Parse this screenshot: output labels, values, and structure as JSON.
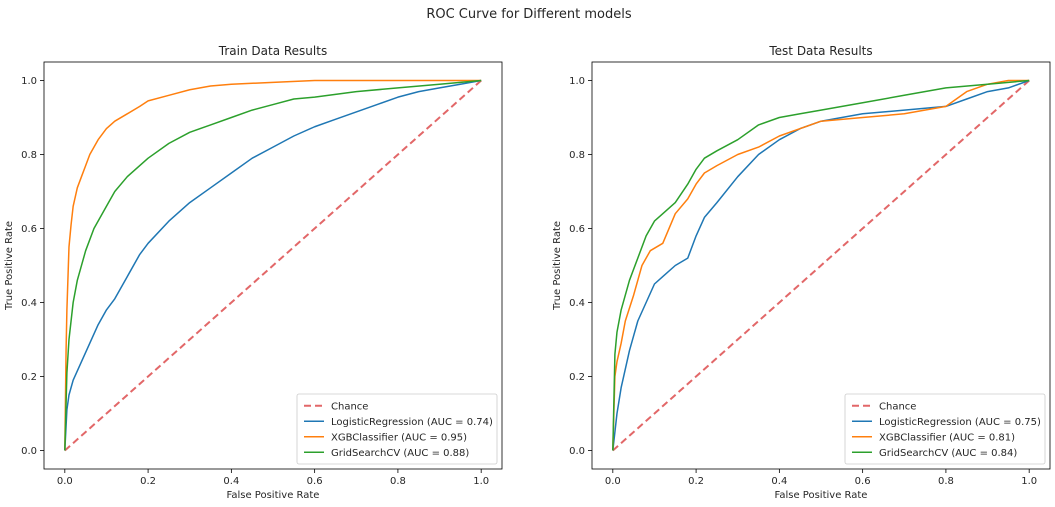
{
  "suptitle": "ROC Curve for Different models",
  "chart_data": [
    {
      "type": "line",
      "title": "Train Data Results",
      "xlabel": "False Positive Rate",
      "ylabel": "True Positive Rate",
      "xlim": [
        -0.05,
        1.05
      ],
      "ylim": [
        -0.05,
        1.05
      ],
      "xticks": [
        "0.0",
        "0.2",
        "0.4",
        "0.6",
        "0.8",
        "1.0"
      ],
      "yticks": [
        "0.0",
        "0.2",
        "0.4",
        "0.6",
        "0.8",
        "1.0"
      ],
      "grid": false,
      "legend_position": "lower-right",
      "series": [
        {
          "name": "Chance",
          "color": "#d62728",
          "dashed": true,
          "x": [
            0,
            1
          ],
          "y": [
            0,
            1
          ]
        },
        {
          "name": "LogisticRegression (AUC = 0.74)",
          "color": "#1f77b4",
          "x": [
            0,
            0.005,
            0.01,
            0.02,
            0.04,
            0.06,
            0.08,
            0.1,
            0.12,
            0.15,
            0.18,
            0.2,
            0.25,
            0.3,
            0.35,
            0.4,
            0.45,
            0.5,
            0.55,
            0.6,
            0.65,
            0.7,
            0.75,
            0.8,
            0.85,
            0.9,
            0.95,
            1.0
          ],
          "y": [
            0,
            0.11,
            0.15,
            0.19,
            0.24,
            0.29,
            0.34,
            0.38,
            0.41,
            0.47,
            0.53,
            0.56,
            0.62,
            0.67,
            0.71,
            0.75,
            0.79,
            0.82,
            0.85,
            0.875,
            0.895,
            0.915,
            0.935,
            0.955,
            0.97,
            0.98,
            0.99,
            1.0
          ]
        },
        {
          "name": "XGBClassifier (AUC = 0.95)",
          "color": "#ff7f0e",
          "x": [
            0,
            0.003,
            0.005,
            0.01,
            0.015,
            0.02,
            0.03,
            0.04,
            0.05,
            0.06,
            0.08,
            0.1,
            0.12,
            0.15,
            0.18,
            0.2,
            0.25,
            0.3,
            0.35,
            0.4,
            0.5,
            0.6,
            0.7,
            0.8,
            0.9,
            1.0
          ],
          "y": [
            0,
            0.27,
            0.38,
            0.55,
            0.61,
            0.66,
            0.71,
            0.74,
            0.77,
            0.8,
            0.84,
            0.87,
            0.89,
            0.91,
            0.93,
            0.945,
            0.96,
            0.975,
            0.985,
            0.99,
            0.995,
            1.0,
            1.0,
            1.0,
            1.0,
            1.0
          ]
        },
        {
          "name": "GridSearchCV (AUC = 0.88)",
          "color": "#2ca02c",
          "x": [
            0,
            0.005,
            0.01,
            0.02,
            0.03,
            0.05,
            0.07,
            0.1,
            0.12,
            0.15,
            0.2,
            0.25,
            0.3,
            0.35,
            0.4,
            0.45,
            0.5,
            0.55,
            0.6,
            0.7,
            0.8,
            0.9,
            1.0
          ],
          "y": [
            0,
            0.21,
            0.3,
            0.4,
            0.46,
            0.54,
            0.6,
            0.66,
            0.7,
            0.74,
            0.79,
            0.83,
            0.86,
            0.88,
            0.9,
            0.92,
            0.935,
            0.95,
            0.955,
            0.97,
            0.98,
            0.99,
            1.0
          ]
        }
      ]
    },
    {
      "type": "line",
      "title": "Test Data Results",
      "xlabel": "False Positive Rate",
      "ylabel": "True Positive Rate",
      "xlim": [
        -0.05,
        1.05
      ],
      "ylim": [
        -0.05,
        1.05
      ],
      "xticks": [
        "0.0",
        "0.2",
        "0.4",
        "0.6",
        "0.8",
        "1.0"
      ],
      "yticks": [
        "0.0",
        "0.2",
        "0.4",
        "0.6",
        "0.8",
        "1.0"
      ],
      "grid": false,
      "legend_position": "lower-right",
      "series": [
        {
          "name": "Chance",
          "color": "#d62728",
          "dashed": true,
          "x": [
            0,
            1
          ],
          "y": [
            0,
            1
          ]
        },
        {
          "name": "LogisticRegression (AUC = 0.75)",
          "color": "#1f77b4",
          "x": [
            0,
            0.01,
            0.02,
            0.04,
            0.06,
            0.08,
            0.1,
            0.12,
            0.15,
            0.18,
            0.2,
            0.22,
            0.25,
            0.3,
            0.35,
            0.4,
            0.45,
            0.5,
            0.55,
            0.6,
            0.7,
            0.8,
            0.85,
            0.9,
            0.95,
            1.0
          ],
          "y": [
            0,
            0.1,
            0.17,
            0.27,
            0.35,
            0.4,
            0.45,
            0.47,
            0.5,
            0.52,
            0.58,
            0.63,
            0.67,
            0.74,
            0.8,
            0.84,
            0.87,
            0.89,
            0.9,
            0.91,
            0.92,
            0.93,
            0.95,
            0.97,
            0.98,
            1.0
          ]
        },
        {
          "name": "XGBClassifier (AUC = 0.81)",
          "color": "#ff7f0e",
          "x": [
            0,
            0.005,
            0.01,
            0.02,
            0.03,
            0.05,
            0.07,
            0.09,
            0.12,
            0.15,
            0.18,
            0.2,
            0.22,
            0.25,
            0.3,
            0.35,
            0.4,
            0.45,
            0.5,
            0.6,
            0.7,
            0.8,
            0.85,
            0.9,
            0.95,
            1.0
          ],
          "y": [
            0,
            0.2,
            0.24,
            0.29,
            0.35,
            0.42,
            0.5,
            0.54,
            0.56,
            0.64,
            0.68,
            0.72,
            0.75,
            0.77,
            0.8,
            0.82,
            0.85,
            0.87,
            0.89,
            0.9,
            0.91,
            0.93,
            0.97,
            0.99,
            1.0,
            1.0
          ]
        },
        {
          "name": "GridSearchCV (AUC = 0.84)",
          "color": "#2ca02c",
          "x": [
            0,
            0.005,
            0.01,
            0.02,
            0.04,
            0.06,
            0.08,
            0.1,
            0.12,
            0.15,
            0.18,
            0.2,
            0.22,
            0.25,
            0.3,
            0.35,
            0.4,
            0.45,
            0.5,
            0.6,
            0.7,
            0.8,
            0.9,
            1.0
          ],
          "y": [
            0,
            0.26,
            0.32,
            0.38,
            0.46,
            0.52,
            0.58,
            0.62,
            0.64,
            0.67,
            0.72,
            0.76,
            0.79,
            0.81,
            0.84,
            0.88,
            0.9,
            0.91,
            0.92,
            0.94,
            0.96,
            0.98,
            0.99,
            1.0
          ]
        }
      ]
    }
  ]
}
